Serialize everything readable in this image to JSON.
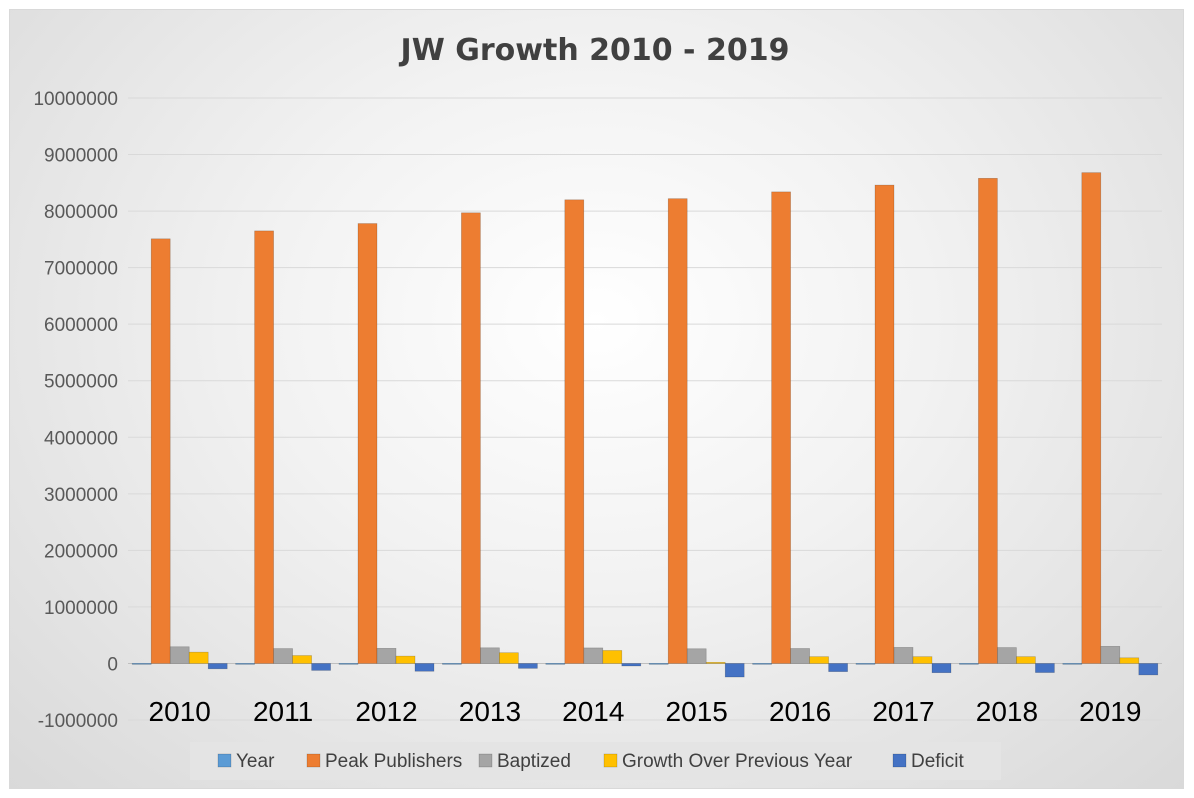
{
  "chart_data": {
    "type": "bar",
    "title": "JW Growth 2010 - 2019",
    "xlabel": "",
    "ylabel": "",
    "categories": [
      "2010",
      "2011",
      "2012",
      "2013",
      "2014",
      "2015",
      "2016",
      "2017",
      "2018",
      "2019"
    ],
    "ylim": [
      -1000000,
      10000000
    ],
    "yticks": [
      -1000000,
      0,
      1000000,
      2000000,
      3000000,
      4000000,
      5000000,
      6000000,
      7000000,
      8000000,
      9000000,
      10000000
    ],
    "ytick_labels": [
      "-1000000",
      "0",
      "1000000",
      "2000000",
      "3000000",
      "4000000",
      "5000000",
      "6000000",
      "7000000",
      "8000000",
      "9000000",
      "10000000"
    ],
    "grid": true,
    "legend_position": "bottom",
    "series": [
      {
        "name": "Year",
        "color": "#5b9bd5",
        "values": [
          2010,
          2011,
          2012,
          2013,
          2014,
          2015,
          2016,
          2017,
          2018,
          2019
        ]
      },
      {
        "name": "Peak Publishers",
        "color": "#ed7d31",
        "values": [
          7510000,
          7650000,
          7780000,
          7970000,
          8200000,
          8220000,
          8340000,
          8460000,
          8580000,
          8680000
        ]
      },
      {
        "name": "Baptized",
        "color": "#a5a5a5",
        "values": [
          295000,
          263000,
          268000,
          277000,
          275000,
          260000,
          265000,
          284000,
          281000,
          303000
        ]
      },
      {
        "name": "Growth Over Previous Year",
        "color": "#ffc000",
        "values": [
          200000,
          140000,
          130000,
          190000,
          230000,
          20000,
          120000,
          120000,
          120000,
          100000
        ]
      },
      {
        "name": "Deficit",
        "color": "#4472c4",
        "values": [
          -95000,
          -123000,
          -138000,
          -87000,
          -45000,
          -240000,
          -145000,
          -164000,
          -161000,
          -203000
        ]
      }
    ]
  }
}
